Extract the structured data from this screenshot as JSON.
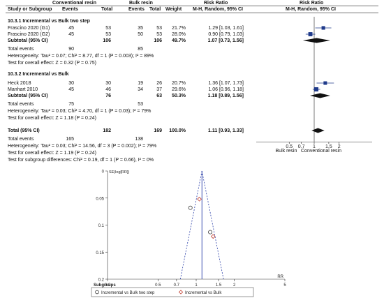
{
  "headers": {
    "group_exp": "Conventional resin",
    "group_ctrl": "Bulk resin",
    "rr_mid": "Risk Ratio",
    "rr_right": "Risk Ratio",
    "col_study": "Study or Subgroup",
    "col_e_events": "Events",
    "col_e_total": "Total",
    "col_c_events": "Events",
    "col_c_total": "Total",
    "col_weight": "Weight",
    "col_mh_mid": "M-H, Random, 95% CI",
    "col_mh_right": "M-H, Random, 95% CI"
  },
  "subgroups": [
    {
      "title": "10.3.1 Incremental vs Bulk two step",
      "studies": [
        {
          "name": "Frascino 2020 (G1)",
          "e_events": "45",
          "e_total": "53",
          "c_events": "35",
          "c_total": "53",
          "weight": "21.7%",
          "ci_text": "1.29 [1.03, 1.61]",
          "rr": 1.29,
          "lo": 1.03,
          "hi": 1.61
        },
        {
          "name": "Frascino 2020 (G2)",
          "e_events": "45",
          "e_total": "53",
          "c_events": "50",
          "c_total": "53",
          "weight": "28.0%",
          "ci_text": "0.90 [0.79, 1.03]",
          "rr": 0.9,
          "lo": 0.79,
          "hi": 1.03
        }
      ],
      "subtotal": {
        "label": "Subtotal (95% CI)",
        "e_total": "106",
        "c_total": "106",
        "weight": "49.7%",
        "ci_text": "1.07 [0.73, 1.56]",
        "rr": 1.07,
        "lo": 0.73,
        "hi": 1.56
      },
      "total_events": {
        "label": "Total events",
        "e": "90",
        "c": "85"
      },
      "heterogeneity": "Heterogeneity: Tau² = 0.07; Chi² = 8.77, df = 1 (P = 0.003); I² = 89%",
      "overall": "Test for overall effect: Z = 0.32 (P = 0.75)"
    },
    {
      "title": "10.3.2 Incremental vs Bulk",
      "studies": [
        {
          "name": "Heck 2018",
          "e_events": "30",
          "e_total": "30",
          "c_events": "19",
          "c_total": "26",
          "weight": "20.7%",
          "ci_text": "1.36 [1.07, 1.73]",
          "rr": 1.36,
          "lo": 1.07,
          "hi": 1.73
        },
        {
          "name": "Manhart 2010",
          "e_events": "45",
          "e_total": "46",
          "c_events": "34",
          "c_total": "37",
          "weight": "29.6%",
          "ci_text": "1.06 [0.96, 1.18]",
          "rr": 1.06,
          "lo": 0.96,
          "hi": 1.18
        }
      ],
      "subtotal": {
        "label": "Subtotal (95% CI)",
        "e_total": "76",
        "c_total": "63",
        "weight": "50.3%",
        "ci_text": "1.18 [0.89, 1.56]",
        "rr": 1.18,
        "lo": 0.89,
        "hi": 1.56
      },
      "total_events": {
        "label": "Total events",
        "e": "75",
        "c": "53"
      },
      "heterogeneity": "Heterogeneity: Tau² = 0.03; Chi² = 4.70, df = 1 (P = 0.03); I² = 79%",
      "overall": "Test for overall effect: Z = 1.18 (P = 0.24)"
    }
  ],
  "total": {
    "label": "Total (95% CI)",
    "e_total": "182",
    "c_total": "169",
    "weight": "100.0%",
    "ci_text": "1.11 [0.93, 1.33]",
    "rr": 1.11,
    "lo": 0.93,
    "hi": 1.33
  },
  "total_events": {
    "label": "Total events",
    "e": "165",
    "c": "138"
  },
  "total_heterogeneity": "Heterogeneity: Tau² = 0.03; Chi² = 14.56, df = 3 (P = 0.002); I² = 79%",
  "total_overall": "Test for overall effect: Z = 1.19 (P = 0.24)",
  "subgroup_diff": "Test for subgroup differences: Chi² = 0.19, df = 1 (P = 0.66), I² = 0%",
  "forest_axis": {
    "ticks": [
      0.5,
      0.7,
      1,
      1.5,
      2
    ],
    "tick_labels": [
      "0.5",
      "0.7",
      "1",
      "1.5",
      "2"
    ],
    "left_label": "Bulk resin",
    "right_label": "Conventional resin"
  },
  "chart_data": [
    {
      "type": "scatter",
      "title": "",
      "xlabel": "RR",
      "ylabel": "SE(log[RR])",
      "x_scale": "log",
      "xlim": [
        0.2,
        5
      ],
      "ylim": [
        0,
        0.2
      ],
      "x_ticks": [
        0.2,
        0.5,
        0.7,
        1,
        1.5,
        2,
        5
      ],
      "x_tick_labels": [
        "0.2",
        "0.5",
        "0.7",
        "1",
        "1.5",
        "2",
        "5"
      ],
      "y_ticks": [
        0,
        0.05,
        0.1,
        0.15,
        0.2
      ],
      "y_tick_labels": [
        "0",
        "0.05",
        "0.1",
        "0.15",
        "0.2"
      ],
      "pooled_rr": 1.11,
      "legend_title": "Subgroups",
      "series": [
        {
          "name": "Incremental vs Bulk two step",
          "marker": "circle",
          "points": [
            {
              "x": 1.29,
              "y": 0.113
            },
            {
              "x": 0.9,
              "y": 0.068
            }
          ]
        },
        {
          "name": "Incremental vs Bulk",
          "marker": "diamond",
          "points": [
            {
              "x": 1.36,
              "y": 0.121
            },
            {
              "x": 1.06,
              "y": 0.052
            }
          ]
        }
      ]
    }
  ]
}
